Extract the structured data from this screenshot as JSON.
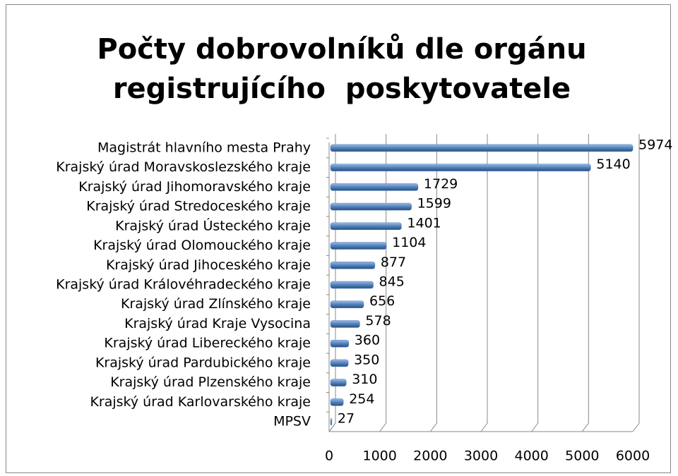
{
  "chart_data": {
    "type": "bar",
    "orientation": "horizontal",
    "title": [
      "Počty dobrovolníků dle orgánu",
      "registrujícího  poskytovatele"
    ],
    "categories": [
      "Magistrát hlavního mesta Prahy",
      "Krajský úrad Moravskoslezského kraje",
      "Krajský úrad Jihomoravského kraje",
      "Krajský úrad Stredoceského kraje",
      "Krajský úrad Ústeckého kraje",
      "Krajský úrad Olomouckého kraje",
      "Krajský úrad Jihoceského kraje",
      "Krajský úrad Královéhradeckého kraje",
      "Krajský úrad Zlínského kraje",
      "Krajský úrad Kraje Vysocina",
      "Krajský úrad Libereckého kraje",
      "Krajský úrad Pardubického kraje",
      "Krajský úrad Plzenského kraje",
      "Krajský úrad Karlovarského kraje",
      "MPSV"
    ],
    "values": [
      5974,
      5140,
      1729,
      1599,
      1401,
      1104,
      877,
      845,
      656,
      578,
      360,
      350,
      310,
      254,
      27
    ],
    "color": "#4f81bd",
    "xlim": [
      0,
      6000
    ],
    "xticks": [
      0,
      1000,
      2000,
      3000,
      4000,
      5000,
      6000
    ],
    "grid": true
  }
}
